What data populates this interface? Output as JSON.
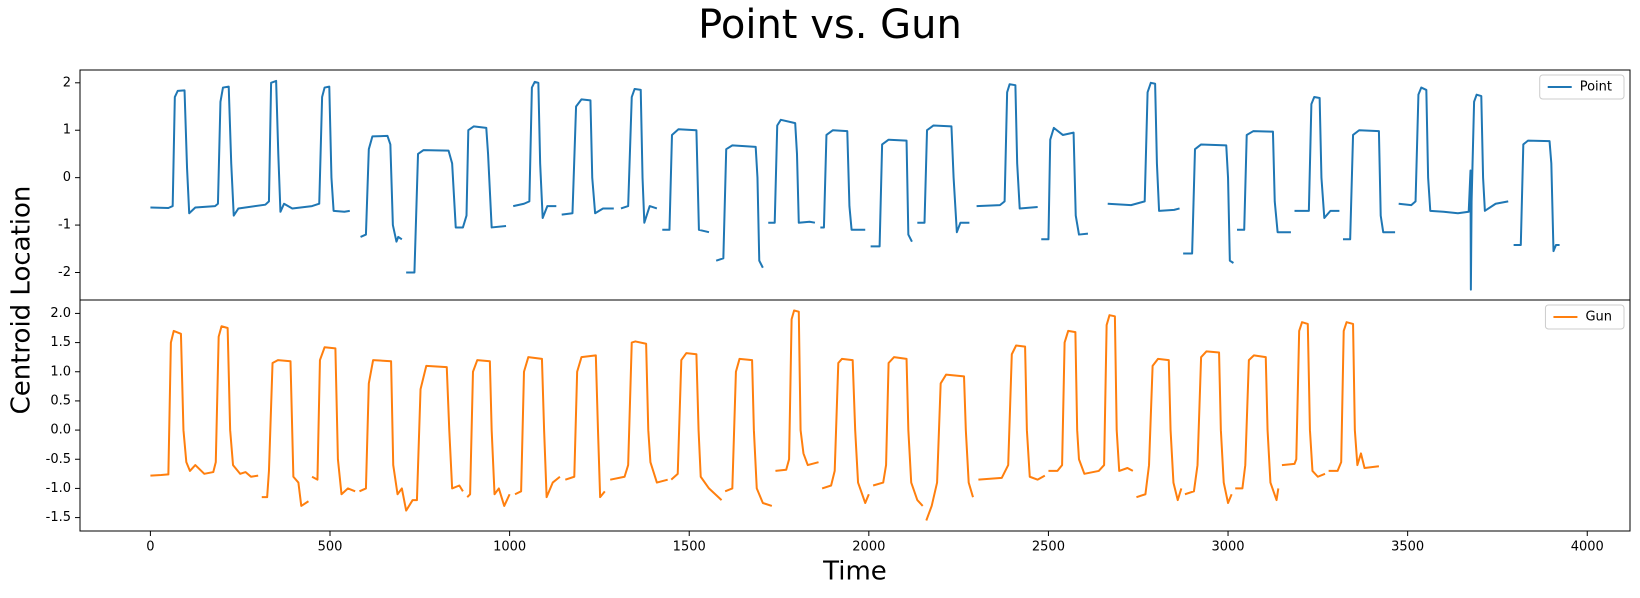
{
  "title": "Point vs. Gun",
  "xlabel": "Time",
  "ylabel": "Centroid Location",
  "chart_data": [
    {
      "type": "line",
      "legend": "upper right",
      "xlim": [
        -196,
        4119
      ],
      "ylim": [
        -2.58,
        2.27
      ],
      "yticks": [
        -2,
        -1,
        0,
        1,
        2
      ],
      "x": [
        0,
        50,
        62,
        68,
        76,
        95,
        102,
        108,
        125,
        180,
        188,
        195,
        202,
        218,
        225,
        232,
        245,
        320,
        330,
        336,
        350,
        356,
        362,
        372,
        395,
        450,
        470,
        478,
        485,
        498,
        504,
        510,
        540,
        555,
        null,
        585,
        600,
        608,
        618,
        660,
        668,
        675,
        685,
        690,
        700,
        null,
        712,
        735,
        745,
        760,
        830,
        840,
        850,
        870,
        880,
        885,
        900,
        935,
        940,
        950,
        990,
        null,
        1010,
        1040,
        1055,
        1062,
        1070,
        1080,
        1085,
        1092,
        1105,
        1130,
        null,
        1145,
        1175,
        1185,
        1200,
        1225,
        1230,
        1238,
        1260,
        1290,
        null,
        1310,
        1330,
        1340,
        1348,
        1365,
        1370,
        1375,
        1390,
        1410,
        null,
        1425,
        1445,
        1452,
        1470,
        1520,
        1527,
        1555,
        null,
        1575,
        1595,
        1603,
        1620,
        1685,
        1690,
        1695,
        1705,
        null,
        1720,
        1738,
        1745,
        1755,
        1795,
        1800,
        1805,
        1835,
        1850,
        null,
        1865,
        1875,
        1882,
        1900,
        1940,
        1946,
        1952,
        1990,
        null,
        2005,
        2030,
        2037,
        2055,
        2105,
        2110,
        2120,
        null,
        2135,
        2155,
        2162,
        2180,
        2230,
        2236,
        2245,
        2255,
        2280,
        null,
        2300,
        2365,
        2378,
        2385,
        2392,
        2408,
        2413,
        2420,
        2470,
        null,
        2480,
        2500,
        2505,
        2515,
        2540,
        2570,
        2576,
        2585,
        2610,
        null,
        2665,
        2730,
        2768,
        2776,
        2785,
        2797,
        2802,
        2808,
        2850,
        2865,
        null,
        2875,
        2900,
        2908,
        2925,
        2995,
        3000,
        3005,
        3015,
        null,
        3025,
        3045,
        3052,
        3070,
        3125,
        3130,
        3138,
        3175,
        null,
        3185,
        3225,
        3232,
        3240,
        3255,
        3260,
        3268,
        3285,
        3310,
        null,
        3320,
        3340,
        3348,
        3365,
        3420,
        3425,
        3432,
        3465,
        null,
        3475,
        3510,
        3522,
        3530,
        3538,
        3552,
        3557,
        3563,
        3600,
        3640,
        3670,
        3675,
        3676,
        3678,
        3685,
        3692,
        3705,
        3710,
        3715,
        3745,
        3780,
        null,
        3795,
        3815,
        3822,
        3835,
        3895,
        3900,
        3906,
        3913,
        3923
      ],
      "series": [
        {
          "name": "Point",
          "color": "#1f77b4",
          "values": [
            -0.63,
            -0.64,
            -0.6,
            1.7,
            1.83,
            1.84,
            0.2,
            -0.75,
            -0.63,
            -0.6,
            -0.55,
            1.6,
            1.9,
            1.92,
            0.3,
            -0.8,
            -0.65,
            -0.57,
            -0.5,
            2.0,
            2.04,
            0.5,
            -0.72,
            -0.55,
            -0.65,
            -0.6,
            -0.55,
            1.7,
            1.9,
            1.92,
            0.0,
            -0.7,
            -0.72,
            -0.7,
            null,
            -1.25,
            -1.2,
            0.6,
            0.87,
            0.88,
            0.7,
            -1.0,
            -1.35,
            -1.25,
            -1.3,
            null,
            -2.0,
            -2.0,
            0.5,
            0.58,
            0.57,
            0.3,
            -1.05,
            -1.05,
            -0.8,
            1.0,
            1.08,
            1.05,
            0.5,
            -1.05,
            -1.02,
            null,
            -0.6,
            -0.55,
            -0.5,
            1.9,
            2.02,
            2.0,
            0.3,
            -0.85,
            -0.6,
            -0.6,
            null,
            -0.78,
            -0.75,
            1.5,
            1.65,
            1.63,
            0.0,
            -0.75,
            -0.65,
            -0.65,
            null,
            -0.65,
            -0.6,
            1.7,
            1.87,
            1.85,
            0.0,
            -0.95,
            -0.6,
            -0.65,
            null,
            -1.1,
            -1.1,
            0.9,
            1.02,
            1.0,
            -1.1,
            -1.15,
            null,
            -1.75,
            -1.7,
            0.6,
            0.68,
            0.65,
            0.0,
            -1.75,
            -1.9,
            null,
            -0.95,
            -0.95,
            1.1,
            1.22,
            1.15,
            0.5,
            -0.95,
            -0.93,
            -0.95,
            null,
            -1.05,
            -1.05,
            0.9,
            1.0,
            0.98,
            -0.6,
            -1.1,
            -1.1,
            null,
            -1.45,
            -1.45,
            0.7,
            0.8,
            0.78,
            -1.2,
            -1.35,
            null,
            -0.95,
            -0.95,
            1.0,
            1.1,
            1.08,
            0.0,
            -1.15,
            -0.95,
            -0.95,
            null,
            -0.6,
            -0.58,
            -0.5,
            1.8,
            1.97,
            1.95,
            0.3,
            -0.65,
            -0.62,
            null,
            -1.3,
            -1.3,
            0.8,
            1.05,
            0.9,
            0.95,
            -0.8,
            -1.2,
            -1.18,
            null,
            -0.55,
            -0.58,
            -0.5,
            1.8,
            2.0,
            1.98,
            0.3,
            -0.7,
            -0.68,
            -0.65,
            null,
            -1.6,
            -1.6,
            0.6,
            0.7,
            0.68,
            0.0,
            -1.75,
            -1.8,
            null,
            -1.1,
            -1.1,
            0.9,
            0.98,
            0.97,
            -0.5,
            -1.15,
            -1.15,
            null,
            -0.7,
            -0.7,
            1.55,
            1.7,
            1.68,
            0.0,
            -0.85,
            -0.7,
            -0.7,
            null,
            -1.3,
            -1.3,
            0.9,
            1.0,
            0.98,
            -0.8,
            -1.15,
            -1.15,
            null,
            -0.55,
            -0.58,
            -0.5,
            1.75,
            1.9,
            1.85,
            0.0,
            -0.7,
            -0.72,
            -0.75,
            -0.72,
            0.15,
            -2.36,
            -0.5,
            1.6,
            1.75,
            1.72,
            0.0,
            -0.7,
            -0.55,
            -0.5,
            null,
            -1.42,
            -1.42,
            0.7,
            0.78,
            0.77,
            0.3,
            -1.55,
            -1.42,
            -1.42
          ]
        }
      ]
    },
    {
      "type": "line",
      "legend": "upper right",
      "xlim": [
        -196,
        4119
      ],
      "ylim": [
        -1.73,
        2.23
      ],
      "yticks": [
        -1.5,
        {
          "value": -1,
          "label": "-1.0"
        },
        -0.5,
        {
          "value": 0,
          "label": "0.0"
        },
        0.5,
        {
          "value": 1,
          "label": "1.0"
        },
        1.5,
        {
          "value": 2,
          "label": "2.0"
        }
      ],
      "xticks": [
        0,
        500,
        1000,
        1500,
        2000,
        2500,
        3000,
        3500,
        4000
      ],
      "x": [
        0,
        30,
        50,
        57,
        65,
        85,
        92,
        100,
        110,
        125,
        150,
        175,
        182,
        190,
        198,
        215,
        222,
        230,
        250,
        265,
        280,
        300,
        null,
        310,
        325,
        330,
        340,
        355,
        390,
        398,
        412,
        420,
        440,
        null,
        450,
        465,
        472,
        485,
        515,
        522,
        532,
        550,
        570,
        null,
        582,
        600,
        608,
        620,
        670,
        676,
        688,
        700,
        712,
        730,
        742,
        752,
        768,
        825,
        832,
        840,
        860,
        870,
        null,
        882,
        890,
        898,
        910,
        945,
        950,
        958,
        970,
        985,
        1000,
        null,
        1015,
        1032,
        1040,
        1052,
        1090,
        1096,
        1103,
        1120,
        1140,
        null,
        1155,
        1180,
        1188,
        1200,
        1240,
        1246,
        1252,
        1265,
        null,
        1280,
        1320,
        1330,
        1340,
        1350,
        1380,
        1386,
        1392,
        1410,
        1440,
        null,
        1450,
        1468,
        1478,
        1492,
        1520,
        1526,
        1532,
        1555,
        1590,
        null,
        1600,
        1620,
        1630,
        1640,
        1675,
        1680,
        1688,
        1705,
        1730,
        null,
        1740,
        1770,
        1778,
        1785,
        1792,
        1805,
        1810,
        1818,
        1830,
        1860,
        null,
        1870,
        1895,
        1905,
        1915,
        1925,
        1955,
        1962,
        1970,
        1990,
        2000,
        null,
        2012,
        2040,
        2048,
        2055,
        2070,
        2105,
        2110,
        2118,
        2135,
        2150,
        null,
        2160,
        2175,
        2190,
        2200,
        2215,
        2265,
        2270,
        2278,
        2290,
        null,
        2305,
        2370,
        2388,
        2398,
        2410,
        2435,
        2440,
        2448,
        2470,
        2490,
        null,
        2500,
        2525,
        2538,
        2545,
        2555,
        2575,
        2580,
        2585,
        2600,
        2640,
        2655,
        2662,
        2670,
        2685,
        2690,
        2697,
        2720,
        2735,
        null,
        2745,
        2770,
        2780,
        2790,
        2805,
        2835,
        2840,
        2848,
        2860,
        2870,
        null,
        2880,
        2905,
        2915,
        2925,
        2940,
        2975,
        2980,
        2988,
        3000,
        3010,
        null,
        3020,
        3040,
        3048,
        3058,
        3072,
        3105,
        3110,
        3118,
        3135,
        3140,
        null,
        3150,
        3185,
        3190,
        3198,
        3206,
        3222,
        3228,
        3235,
        3250,
        3270,
        null,
        3280,
        3305,
        3315,
        3322,
        3330,
        3348,
        3353,
        3360,
        3370,
        3380,
        3420
      ],
      "series": [
        {
          "name": "Gun",
          "color": "#ff7f0e",
          "values": [
            -0.78,
            -0.77,
            -0.76,
            1.5,
            1.7,
            1.65,
            0.0,
            -0.55,
            -0.7,
            -0.6,
            -0.75,
            -0.72,
            -0.55,
            1.6,
            1.78,
            1.75,
            0.0,
            -0.6,
            -0.75,
            -0.72,
            -0.8,
            -0.78,
            null,
            -1.15,
            -1.15,
            -0.7,
            1.15,
            1.2,
            1.18,
            -0.8,
            -0.9,
            -1.3,
            -1.22,
            null,
            -0.8,
            -0.85,
            1.2,
            1.42,
            1.4,
            -0.5,
            -1.1,
            -1.0,
            -1.05,
            null,
            -1.05,
            -1.0,
            0.8,
            1.2,
            1.18,
            -0.6,
            -1.1,
            -1.0,
            -1.38,
            -1.2,
            -1.2,
            0.7,
            1.1,
            1.08,
            0.0,
            -1.0,
            -0.95,
            -1.05,
            null,
            -1.15,
            -1.1,
            1.0,
            1.2,
            1.18,
            0.0,
            -1.1,
            -1.0,
            -1.3,
            -1.1,
            null,
            -1.1,
            -1.05,
            1.0,
            1.25,
            1.22,
            0.0,
            -1.15,
            -0.9,
            -0.8,
            null,
            -0.85,
            -0.8,
            1.0,
            1.25,
            1.28,
            0.0,
            -1.15,
            -1.05,
            null,
            -0.85,
            -0.8,
            -0.6,
            1.5,
            1.52,
            1.48,
            0.0,
            -0.55,
            -0.9,
            -0.85,
            null,
            -0.85,
            -0.75,
            1.2,
            1.32,
            1.3,
            0.0,
            -0.8,
            -1.0,
            -1.2,
            null,
            -1.05,
            -1.0,
            1.0,
            1.22,
            1.2,
            0.0,
            -1.0,
            -1.25,
            -1.3,
            null,
            -0.7,
            -0.68,
            -0.5,
            1.9,
            2.05,
            2.03,
            0.0,
            -0.4,
            -0.6,
            -0.55,
            null,
            -1.0,
            -0.95,
            -0.7,
            1.15,
            1.22,
            1.2,
            0.0,
            -0.9,
            -1.25,
            -1.1,
            null,
            -0.95,
            -0.9,
            -0.6,
            1.15,
            1.25,
            1.22,
            0.0,
            -0.9,
            -1.2,
            -1.3,
            null,
            -1.55,
            -1.3,
            -0.9,
            0.8,
            0.95,
            0.92,
            0.0,
            -0.9,
            -1.15,
            null,
            -0.85,
            -0.82,
            -0.6,
            1.3,
            1.45,
            1.43,
            0.0,
            -0.8,
            -0.85,
            -0.78,
            null,
            -0.7,
            -0.7,
            -0.6,
            1.5,
            1.7,
            1.68,
            0.0,
            -0.5,
            -0.75,
            -0.7,
            -0.6,
            1.8,
            1.97,
            1.95,
            0.0,
            -0.7,
            -0.65,
            -0.7,
            null,
            -1.15,
            -1.1,
            -0.6,
            1.1,
            1.22,
            1.2,
            0.0,
            -0.9,
            -1.2,
            -1.0,
            null,
            -1.1,
            -1.05,
            -0.6,
            1.25,
            1.35,
            1.33,
            0.0,
            -0.9,
            -1.25,
            -1.1,
            null,
            -1.0,
            -1.0,
            -0.6,
            1.2,
            1.28,
            1.25,
            0.0,
            -0.9,
            -1.2,
            -1.0,
            null,
            -0.6,
            -0.58,
            -0.5,
            1.7,
            1.85,
            1.82,
            0.0,
            -0.7,
            -0.8,
            -0.75,
            null,
            -0.7,
            -0.7,
            -0.55,
            1.7,
            1.85,
            1.82,
            0.0,
            -0.6,
            -0.4,
            -0.65,
            -0.62
          ]
        }
      ]
    }
  ]
}
